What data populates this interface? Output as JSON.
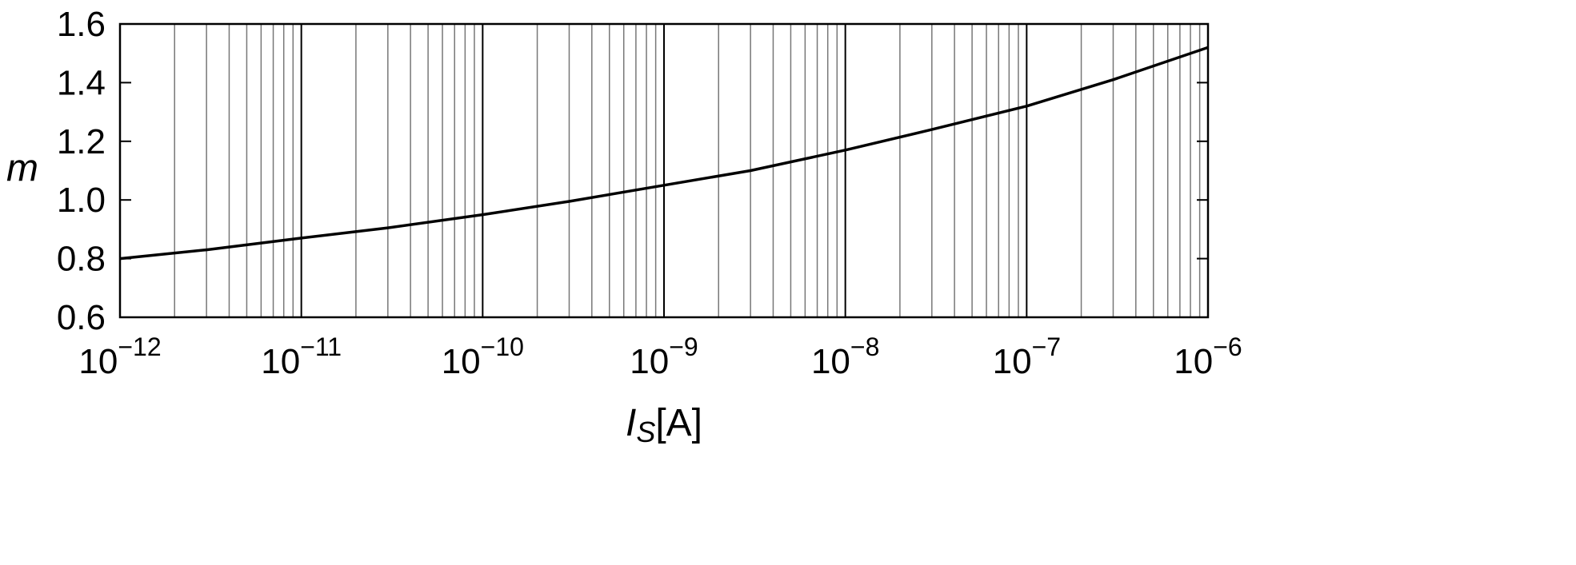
{
  "chart_data": {
    "type": "line",
    "xscale": "log",
    "xlim": [
      1e-12,
      1e-06
    ],
    "ylim": [
      0.6,
      1.6
    ],
    "grid": "vertical log grid (major and minor)",
    "xlabel": {
      "main": "I",
      "sub": "S",
      "unit": "[A]"
    },
    "ylabel": "m",
    "x_ticks": [
      {
        "base": "10",
        "exp": "−12",
        "value": 1e-12
      },
      {
        "base": "10",
        "exp": "−11",
        "value": 1e-11
      },
      {
        "base": "10",
        "exp": "−10",
        "value": 1e-10
      },
      {
        "base": "10",
        "exp": "−9",
        "value": 1e-09
      },
      {
        "base": "10",
        "exp": "−8",
        "value": 1e-08
      },
      {
        "base": "10",
        "exp": "−7",
        "value": 1e-07
      },
      {
        "base": "10",
        "exp": "−6",
        "value": 1e-06
      }
    ],
    "y_ticks": [
      {
        "label": "0.6",
        "value": 0.6
      },
      {
        "label": "0.8",
        "value": 0.8
      },
      {
        "label": "1.0",
        "value": 1.0
      },
      {
        "label": "1.2",
        "value": 1.2
      },
      {
        "label": "1.4",
        "value": 1.4
      },
      {
        "label": "1.6",
        "value": 1.6
      }
    ],
    "series": [
      {
        "color": "#000000",
        "x": [
          1e-12,
          3e-12,
          1e-11,
          3e-11,
          1e-10,
          3e-10,
          1e-09,
          3e-09,
          1e-08,
          3e-08,
          1e-07,
          3e-07,
          1e-06
        ],
        "y": [
          0.8,
          0.83,
          0.87,
          0.905,
          0.95,
          0.995,
          1.05,
          1.1,
          1.17,
          1.24,
          1.32,
          1.41,
          1.52
        ]
      }
    ]
  }
}
